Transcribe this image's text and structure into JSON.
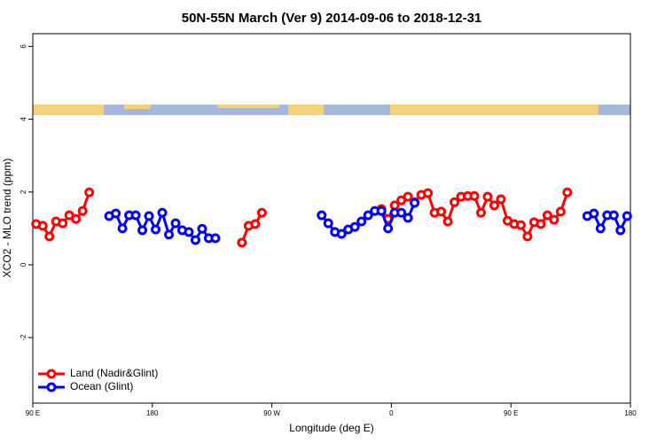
{
  "chart_data": {
    "type": "line",
    "title": "50N-55N March (Ver 9)   2014-09-06 to 2018-12-31",
    "x_label": "Longitude (deg E)",
    "y_label": "XCO2 - MLO trend (ppm)",
    "xlim": [
      90,
      540
    ],
    "ylim": [
      -3.8,
      6.35
    ],
    "xticks": [
      {
        "value": 90,
        "label": "90 E"
      },
      180,
      {
        "value": 270,
        "label": "90 W"
      },
      {
        "value": 360,
        "label": "0"
      },
      {
        "value": 450,
        "label": "90 E"
      },
      {
        "value": 540,
        "label": "180"
      }
    ],
    "yticks": [
      -2,
      0,
      2,
      4,
      6
    ],
    "legend": "bottom-left",
    "series": [
      {
        "name": "Land (Nadir&Glint)",
        "color": "#ff0000",
        "x": [
          92.5,
          97.5,
          102.5,
          107.5,
          112.5,
          117.5,
          122.5,
          127.5,
          132.5,
          137.5,
          247.5,
          252.5,
          257.5,
          262.5,
          267.5,
          352.5,
          357.5,
          362.5,
          367.5,
          372.5,
          377.5,
          382.5,
          387.5,
          392.5,
          397.5,
          402.5,
          407.5,
          412.5,
          417.5,
          422.5,
          427.5,
          432.5,
          437.5,
          442.5,
          447.5,
          452.5,
          457.5,
          462.5,
          467.5,
          472.5,
          477.5,
          482.5,
          487.5,
          492.5
        ],
        "values": [
          1.12,
          1.07,
          0.78,
          1.19,
          1.14,
          1.36,
          1.26,
          1.48,
          1.99,
          null,
          0.61,
          1.07,
          1.12,
          1.43,
          null,
          1.53,
          1.26,
          1.63,
          1.77,
          1.87,
          1.72,
          1.92,
          1.97,
          1.43,
          1.46,
          1.19,
          1.72,
          1.87,
          1.89,
          1.89,
          1.43,
          1.87,
          1.63,
          1.8,
          1.21,
          1.12,
          1.09,
          0.78,
          1.17,
          1.12,
          1.36,
          1.24,
          1.46,
          1.99
        ]
      },
      {
        "name": "Ocean (Glint)",
        "color": "#0000ff",
        "x": [
          147.5,
          152.5,
          157.5,
          162.5,
          167.5,
          172.5,
          177.5,
          182.5,
          187.5,
          192.5,
          197.5,
          202.5,
          207.5,
          212.5,
          217.5,
          222.5,
          227.5,
          232.5,
          307.5,
          312.5,
          317.5,
          322.5,
          327.5,
          332.5,
          337.5,
          342.5,
          347.5,
          352.5,
          357.5,
          362.5,
          367.5,
          372.5,
          377.5,
          382.5,
          507.5,
          512.5,
          517.5,
          522.5,
          527.5,
          532.5,
          537.5
        ],
        "values": [
          1.34,
          1.41,
          1.0,
          1.36,
          1.36,
          0.95,
          1.34,
          0.97,
          1.43,
          0.83,
          1.14,
          0.95,
          0.9,
          0.68,
          0.99,
          0.73,
          0.73,
          null,
          1.36,
          1.14,
          0.9,
          0.85,
          0.97,
          1.04,
          1.19,
          1.36,
          1.48,
          1.48,
          1.0,
          1.43,
          1.43,
          1.29,
          1.7,
          null,
          1.34,
          1.41,
          1.0,
          1.36,
          1.36,
          0.95,
          1.34
        ]
      }
    ]
  }
}
